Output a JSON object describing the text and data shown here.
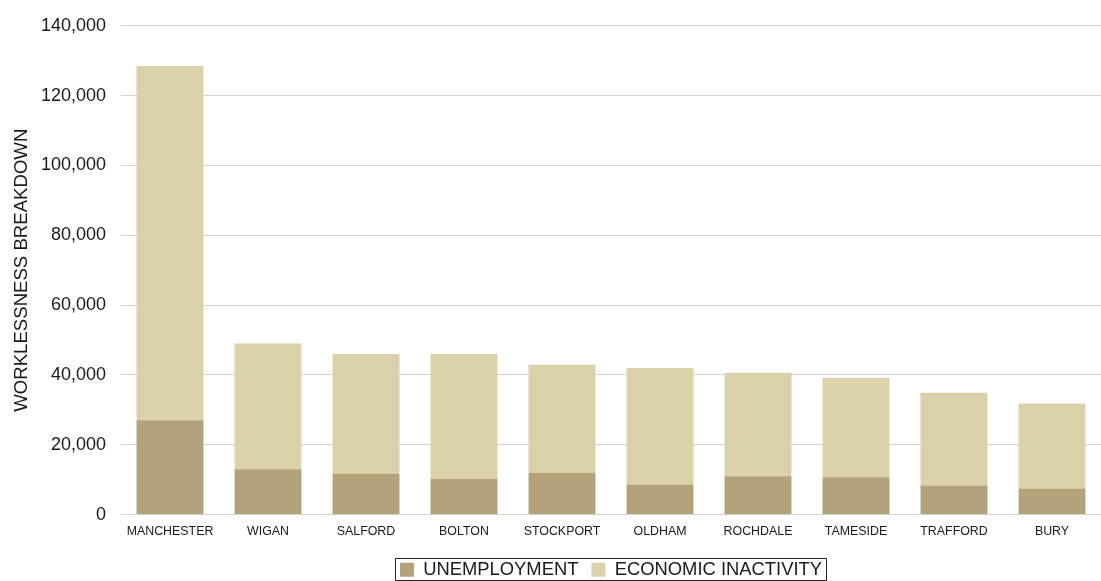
{
  "chart_data": {
    "type": "bar",
    "stacked": true,
    "ylabel": "WORKLESSNESS BREAKDOWN",
    "categories": [
      "MANCHESTER",
      "WIGAN",
      "SALFORD",
      "BOLTON",
      "STOCKPORT",
      "OLDHAM",
      "ROCHDALE",
      "TAMESIDE",
      "TRAFFORD",
      "BURY"
    ],
    "series": [
      {
        "name": "UNEMPLOYMENT",
        "color": "#b2a37a",
        "values": [
          27000,
          13000,
          11700,
          10200,
          12000,
          8600,
          11000,
          10700,
          8300,
          7500
        ]
      },
      {
        "name": "ECONOMIC INACTIVITY",
        "color": "#dbd2ab",
        "values": [
          101500,
          36000,
          34300,
          35800,
          30900,
          33400,
          29600,
          28500,
          26600,
          24300
        ]
      }
    ],
    "ylim": [
      0,
      140000
    ],
    "yticks": [
      0,
      {
        "value": 20000,
        "label": "20,000"
      },
      {
        "value": 40000,
        "label": "40,000"
      },
      {
        "value": 60000,
        "label": "60,000"
      },
      {
        "value": 80000,
        "label": "80,000"
      },
      {
        "value": 100000,
        "label": "100,000"
      },
      {
        "value": 120000,
        "label": "120,000"
      },
      {
        "value": 140000,
        "label": "140,000"
      }
    ],
    "grid": "y",
    "legend": "bottom"
  }
}
